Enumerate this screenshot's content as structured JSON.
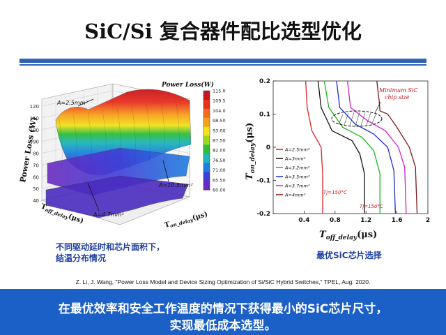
{
  "slide": {
    "title": "SiC/Si 复合器件配比选型优化",
    "caption_left_1": "不同驱动延时和芯片面积下，",
    "caption_left_2": "结温分布情况",
    "caption_right": "最优SiC芯片选择",
    "citation": "Z. Li, J. Wang, \"Power Loss Model and Device Sizing Optimization of Si/SiC Hybrid Switches,\" TPEL, Aug. 2020.",
    "banner_line1": "在最优效率和安全工作温度的情况下获得最小的SiC芯片尺寸，",
    "banner_line2": "实现最低成本选型。"
  },
  "chart_data": [
    {
      "type": "surface",
      "zlabel": "Power Loss (W)",
      "xlabel_prefix": "T",
      "xlabel_sub": "on_delay",
      "xlabel_unit": "(μs)",
      "ylabel_prefix": "T",
      "ylabel_sub": "off_delay",
      "ylabel_unit": "(μs)",
      "zlim": [
        40,
        120
      ],
      "z_ticks": [
        "120",
        "110",
        "100",
        "90",
        "80",
        "70",
        "60",
        "50",
        "40"
      ],
      "colorbar_title": "Power Loss(W)",
      "colorbar_ticks": [
        "115.0",
        "109.5",
        "104.0",
        "98.50",
        "93.00",
        "87.50",
        "82.00",
        "76.50",
        "71.00",
        "65.50",
        "60.00"
      ],
      "colorbar_colors": [
        "#c8161e",
        "#e83020",
        "#f26a1c",
        "#f7a21c",
        "#f2e21a",
        "#9ed620",
        "#2fbf3a",
        "#1fb6b8",
        "#1e7fe0",
        "#3f3fd8",
        "#6a2bc0"
      ],
      "annotations": [
        "A=2.5mm²",
        "A=10.5mm²",
        "A=4.7mm²"
      ]
    },
    {
      "type": "line",
      "xlabel_prefix": "T",
      "xlabel_sub": "off_delay",
      "xlabel_unit": "(μs)",
      "ylabel_prefix": "T",
      "ylabel_sub": "on_delay",
      "ylabel_unit": "(μs)",
      "xlim": [
        0,
        2
      ],
      "ylim": [
        -0.2,
        0.2
      ],
      "x_ticks": [
        0.4,
        0.8,
        1.2,
        1.6,
        2
      ],
      "y_ticks": [
        0.2,
        0.1,
        0,
        -0.1,
        -0.2
      ],
      "x_tick_labels": [
        "0.4",
        "0.8",
        "1.2",
        "1.6",
        "2"
      ],
      "y_tick_labels": [
        "0.2",
        "0.1",
        "0",
        "-0.1",
        "-0.2"
      ],
      "series": [
        {
          "name": "A=2.5mm²",
          "color": "#e02020",
          "points": [
            [
              0.42,
              0.2
            ],
            [
              0.44,
              0.12
            ],
            [
              0.5,
              0.05
            ],
            [
              0.62,
              0.0
            ],
            [
              0.64,
              -0.08
            ],
            [
              0.64,
              -0.2
            ]
          ]
        },
        {
          "name": "A=3mm²",
          "color": "#111111",
          "points": [
            [
              0.58,
              0.2
            ],
            [
              0.62,
              0.12
            ],
            [
              0.76,
              0.05
            ],
            [
              1.02,
              0.02
            ],
            [
              1.12,
              -0.02
            ],
            [
              1.18,
              -0.08
            ],
            [
              1.18,
              -0.2
            ]
          ]
        },
        {
          "name": "A=3.2mm²",
          "color": "#18b818",
          "points": [
            [
              0.66,
              0.2
            ],
            [
              0.72,
              0.12
            ],
            [
              0.9,
              0.06
            ],
            [
              1.15,
              0.03
            ],
            [
              1.3,
              -0.01
            ],
            [
              1.38,
              -0.08
            ],
            [
              1.38,
              -0.2
            ]
          ]
        },
        {
          "name": "A=3.5mm²",
          "color": "#1a2ec8",
          "points": [
            [
              0.82,
              0.2
            ],
            [
              0.86,
              0.12
            ],
            [
              1.06,
              0.07
            ],
            [
              1.3,
              0.04
            ],
            [
              1.48,
              0.0
            ],
            [
              1.56,
              -0.07
            ],
            [
              1.58,
              -0.2
            ]
          ]
        },
        {
          "name": "A=3.7mm²",
          "color": "#d020c8",
          "points": [
            [
              0.96,
              0.2
            ],
            [
              1.0,
              0.12
            ],
            [
              1.22,
              0.08
            ],
            [
              1.45,
              0.05
            ],
            [
              1.62,
              0.0
            ],
            [
              1.7,
              -0.06
            ],
            [
              1.72,
              -0.2
            ]
          ]
        },
        {
          "name": "A=4mm²",
          "color": "#7a1a1a",
          "points": [
            [
              1.34,
              0.2
            ],
            [
              1.37,
              0.14
            ],
            [
              1.38,
              0.11
            ],
            [
              1.48,
              0.1
            ],
            [
              1.6,
              0.06
            ],
            [
              1.76,
              0.0
            ],
            [
              1.84,
              -0.06
            ],
            [
              1.86,
              -0.2
            ]
          ]
        }
      ],
      "annotations": [
        "Minimum SiC",
        "chip size",
        "Tj=150°C",
        "Tj=150°C"
      ]
    }
  ]
}
